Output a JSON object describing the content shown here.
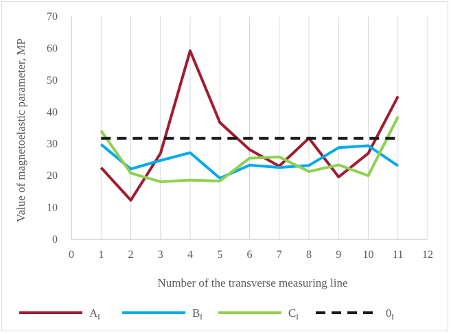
{
  "chart_data": {
    "type": "line",
    "xlabel": "Number of the transverse measuring line",
    "ylabel": "Value of magnetoelastic parameter, MP",
    "xlim": [
      0,
      12
    ],
    "ylim": [
      0,
      70
    ],
    "x_ticks": [
      0,
      1,
      2,
      3,
      4,
      5,
      6,
      7,
      8,
      9,
      10,
      11,
      12
    ],
    "y_ticks": [
      0,
      10,
      20,
      30,
      40,
      50,
      60,
      70
    ],
    "grid": "vertical",
    "legend_position": "bottom",
    "series": [
      {
        "name": "A",
        "subscript": "‖",
        "color": "#a01c2e",
        "style": "solid",
        "x": [
          1,
          2,
          3,
          4,
          5,
          6,
          7,
          8,
          9,
          10,
          11
        ],
        "y": [
          22.5,
          12.3,
          27,
          59.2,
          36.7,
          28.2,
          23,
          31.8,
          19.6,
          27,
          44.9
        ]
      },
      {
        "name": "B",
        "subscript": "‖",
        "color": "#00aaee",
        "style": "solid",
        "x": [
          1,
          2,
          3,
          4,
          5,
          6,
          7,
          8,
          9,
          10,
          11
        ],
        "y": [
          29.8,
          22.1,
          24.8,
          27.2,
          19.2,
          23.3,
          22.6,
          23.2,
          28.8,
          29.4,
          23.1
        ]
      },
      {
        "name": "C",
        "subscript": "‖",
        "color": "#8fd14f",
        "style": "solid",
        "x": [
          1,
          2,
          3,
          4,
          5,
          6,
          7,
          8,
          9,
          10,
          11
        ],
        "y": [
          34.1,
          20.8,
          18.1,
          18.6,
          18.3,
          25.5,
          25.9,
          21.3,
          23.4,
          20.0,
          38.5
        ]
      },
      {
        "name": "0",
        "subscript": "‖",
        "color": "#1a1a1a",
        "style": "dashed",
        "x": [
          1,
          11
        ],
        "y": [
          31.7,
          31.7
        ]
      }
    ]
  }
}
